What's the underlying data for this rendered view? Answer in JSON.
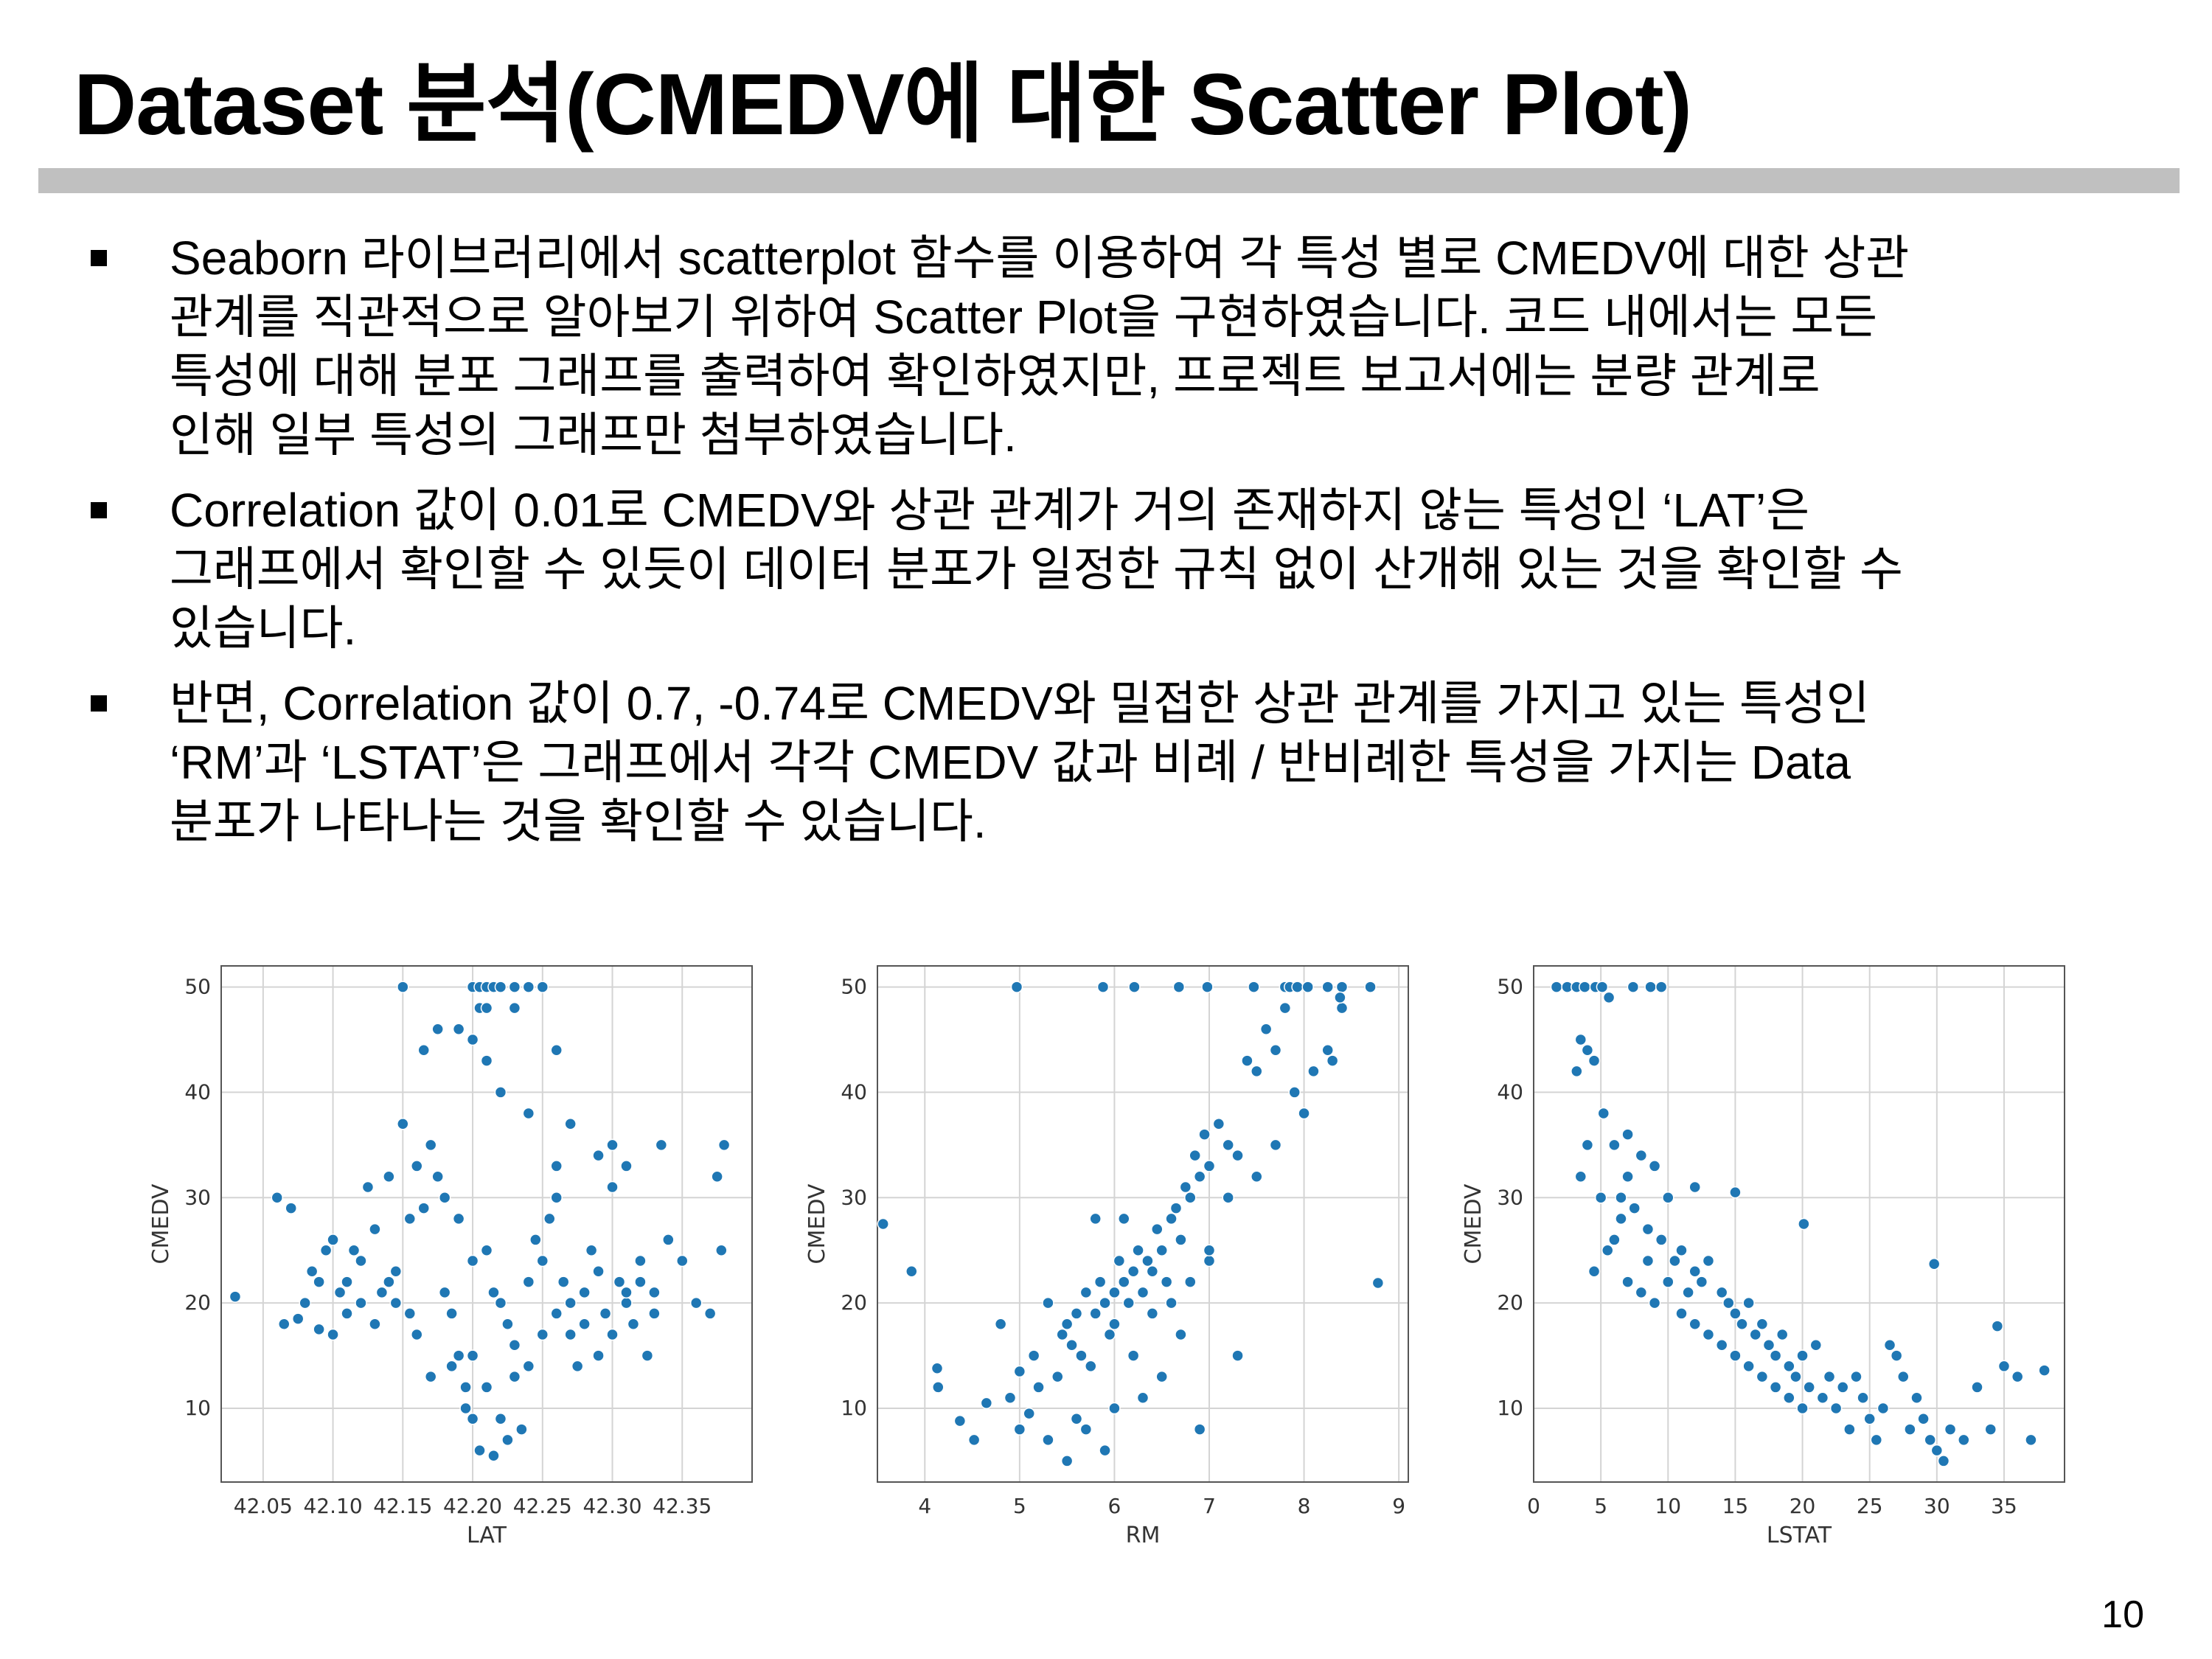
{
  "title": "Dataset 분석(CMEDV에 대한 Scatter Plot)",
  "page_number": "10",
  "bullets": [
    {
      "lines": [
        "Seaborn 라이브러리에서 scatterplot 함수를 이용하여 각 특성 별로 CMEDV에 대한 상관",
        "관계를 직관적으로 알아보기 위하여 Scatter Plot을 구현하였습니다. 코드 내에서는 모든",
        "특성에 대해 분포 그래프를 출력하여 확인하였지만, 프로젝트 보고서에는 분량 관계로",
        "인해 일부 특성의 그래프만 첨부하였습니다."
      ]
    },
    {
      "lines": [
        "Correlation 값이 0.01로 CMEDV와 상관 관계가 거의 존재하지 않는 특성인 ‘LAT’은",
        "그래프에서 확인할 수 있듯이 데이터 분포가 일정한 규칙 없이 산개해 있는 것을 확인할 수",
        "있습니다."
      ]
    },
    {
      "lines": [
        "반면, Correlation 값이 0.7, -0.74로 CMEDV와 밀접한 상관 관계를 가지고 있는 특성인",
        "‘RM’과 ‘LSTAT’은 그래프에서 각각 CMEDV 값과 비례 / 반비례한 특성을 가지는 Data",
        "분포가 나타나는 것을 확인할 수 있습니다."
      ]
    }
  ],
  "chart_data": [
    {
      "type": "scatter",
      "xlabel": "LAT",
      "ylabel": "CMEDV",
      "xlim": [
        42.02,
        42.4
      ],
      "ylim": [
        3,
        52
      ],
      "xticks": [
        "42.05",
        "42.10",
        "42.15",
        "42.20",
        "42.25",
        "42.30",
        "42.35"
      ],
      "yticks": [
        "10",
        "20",
        "30",
        "40",
        "50"
      ],
      "grid": true,
      "color": "#1f77b4",
      "points": [
        [
          42.03,
          20.6
        ],
        [
          42.06,
          30
        ],
        [
          42.065,
          18
        ],
        [
          42.07,
          29
        ],
        [
          42.075,
          18.5
        ],
        [
          42.08,
          20
        ],
        [
          42.085,
          23
        ],
        [
          42.09,
          17.5
        ],
        [
          42.095,
          25
        ],
        [
          42.1,
          17
        ],
        [
          42.105,
          21
        ],
        [
          42.11,
          22
        ],
        [
          42.115,
          25
        ],
        [
          42.12,
          24
        ],
        [
          42.125,
          31
        ],
        [
          42.13,
          27
        ],
        [
          42.135,
          21
        ],
        [
          42.14,
          32
        ],
        [
          42.145,
          23
        ],
        [
          42.15,
          37
        ],
        [
          42.155,
          28
        ],
        [
          42.16,
          33
        ],
        [
          42.165,
          29
        ],
        [
          42.17,
          35
        ],
        [
          42.175,
          32
        ],
        [
          42.18,
          21
        ],
        [
          42.185,
          19
        ],
        [
          42.19,
          15
        ],
        [
          42.195,
          12
        ],
        [
          42.2,
          9
        ],
        [
          42.205,
          6
        ],
        [
          42.21,
          25
        ],
        [
          42.215,
          21
        ],
        [
          42.22,
          20
        ],
        [
          42.225,
          18
        ],
        [
          42.23,
          13
        ],
        [
          42.235,
          8
        ],
        [
          42.24,
          22
        ],
        [
          42.245,
          26
        ],
        [
          42.25,
          24
        ],
        [
          42.255,
          28
        ],
        [
          42.26,
          30
        ],
        [
          42.265,
          22
        ],
        [
          42.27,
          17
        ],
        [
          42.275,
          14
        ],
        [
          42.28,
          21
        ],
        [
          42.285,
          25
        ],
        [
          42.29,
          23
        ],
        [
          42.295,
          19
        ],
        [
          42.3,
          31
        ],
        [
          42.305,
          22
        ],
        [
          42.31,
          20
        ],
        [
          42.315,
          18
        ],
        [
          42.32,
          24
        ],
        [
          42.325,
          15
        ],
        [
          42.33,
          21
        ],
        [
          42.34,
          26
        ],
        [
          42.35,
          24
        ],
        [
          42.36,
          20
        ],
        [
          42.37,
          19
        ],
        [
          42.38,
          35
        ],
        [
          42.375,
          32
        ],
        [
          42.378,
          25
        ],
        [
          42.15,
          50
        ],
        [
          42.2,
          50
        ],
        [
          42.205,
          50
        ],
        [
          42.21,
          50
        ],
        [
          42.215,
          50
        ],
        [
          42.22,
          50
        ],
        [
          42.23,
          50
        ],
        [
          42.24,
          50
        ],
        [
          42.25,
          50
        ],
        [
          42.205,
          48
        ],
        [
          42.21,
          48
        ],
        [
          42.23,
          48
        ],
        [
          42.19,
          46
        ],
        [
          42.2,
          45
        ],
        [
          42.21,
          43
        ],
        [
          42.165,
          44
        ],
        [
          42.175,
          46
        ],
        [
          42.26,
          44
        ],
        [
          42.22,
          40
        ],
        [
          42.24,
          38
        ],
        [
          42.27,
          37
        ],
        [
          42.26,
          33
        ],
        [
          42.29,
          34
        ],
        [
          42.3,
          35
        ],
        [
          42.31,
          33
        ],
        [
          42.335,
          35
        ],
        [
          42.18,
          30
        ],
        [
          42.19,
          28
        ],
        [
          42.2,
          24
        ],
        [
          42.2,
          15
        ],
        [
          42.21,
          12
        ],
        [
          42.22,
          9
        ],
        [
          42.225,
          7
        ],
        [
          42.215,
          5.5
        ],
        [
          42.195,
          10
        ],
        [
          42.185,
          14
        ],
        [
          42.17,
          13
        ],
        [
          42.16,
          17
        ],
        [
          42.155,
          19
        ],
        [
          42.145,
          20
        ],
        [
          42.14,
          22
        ],
        [
          42.13,
          18
        ],
        [
          42.12,
          20
        ],
        [
          42.11,
          19
        ],
        [
          42.1,
          26
        ],
        [
          42.09,
          22
        ],
        [
          42.23,
          16
        ],
        [
          42.24,
          14
        ],
        [
          42.25,
          17
        ],
        [
          42.26,
          19
        ],
        [
          42.27,
          20
        ],
        [
          42.28,
          18
        ],
        [
          42.29,
          15
        ],
        [
          42.3,
          17
        ],
        [
          42.31,
          21
        ],
        [
          42.32,
          22
        ],
        [
          42.33,
          19
        ]
      ]
    },
    {
      "type": "scatter",
      "xlabel": "RM",
      "ylabel": "CMEDV",
      "xlim": [
        3.5,
        9.1
      ],
      "ylim": [
        3,
        52
      ],
      "xticks": [
        "4",
        "5",
        "6",
        "7",
        "8",
        "9"
      ],
      "yticks": [
        "10",
        "20",
        "30",
        "40",
        "50"
      ],
      "grid": true,
      "color": "#1f77b4",
      "points": [
        [
          3.56,
          27.5
        ],
        [
          3.86,
          23
        ],
        [
          4.13,
          13.8
        ],
        [
          4.14,
          12
        ],
        [
          4.37,
          8.8
        ],
        [
          4.52,
          7
        ],
        [
          4.65,
          10.5
        ],
        [
          4.8,
          18
        ],
        [
          4.9,
          11
        ],
        [
          5.0,
          13.5
        ],
        [
          5.0,
          8
        ],
        [
          5.1,
          9.5
        ],
        [
          5.15,
          15
        ],
        [
          5.2,
          12
        ],
        [
          5.3,
          20
        ],
        [
          5.4,
          13
        ],
        [
          5.45,
          17
        ],
        [
          5.5,
          18
        ],
        [
          5.55,
          16
        ],
        [
          5.6,
          19
        ],
        [
          5.65,
          15
        ],
        [
          5.7,
          21
        ],
        [
          5.75,
          14
        ],
        [
          5.8,
          19
        ],
        [
          5.85,
          22
        ],
        [
          5.9,
          20
        ],
        [
          5.95,
          17
        ],
        [
          6.0,
          21
        ],
        [
          6.05,
          24
        ],
        [
          6.1,
          22
        ],
        [
          6.15,
          20
        ],
        [
          6.2,
          23
        ],
        [
          6.25,
          25
        ],
        [
          6.3,
          21
        ],
        [
          6.35,
          24
        ],
        [
          6.4,
          23
        ],
        [
          6.45,
          27
        ],
        [
          6.5,
          25
        ],
        [
          6.55,
          22
        ],
        [
          6.6,
          28
        ],
        [
          6.65,
          29
        ],
        [
          6.7,
          26
        ],
        [
          6.75,
          31
        ],
        [
          6.8,
          30
        ],
        [
          6.85,
          34
        ],
        [
          6.9,
          32
        ],
        [
          6.95,
          36
        ],
        [
          7.0,
          33
        ],
        [
          7.1,
          37
        ],
        [
          7.2,
          35
        ],
        [
          7.3,
          34
        ],
        [
          7.4,
          43
        ],
        [
          7.5,
          42
        ],
        [
          7.6,
          46
        ],
        [
          7.7,
          44
        ],
        [
          7.8,
          48
        ],
        [
          7.9,
          40
        ],
        [
          8.0,
          38
        ],
        [
          8.1,
          42
        ],
        [
          8.25,
          44
        ],
        [
          8.3,
          43
        ],
        [
          8.4,
          48
        ],
        [
          8.78,
          21.9
        ],
        [
          7.7,
          35
        ],
        [
          7.3,
          15
        ],
        [
          7.0,
          24
        ],
        [
          6.7,
          17
        ],
        [
          6.2,
          15
        ],
        [
          6.0,
          10
        ],
        [
          5.9,
          6
        ],
        [
          5.7,
          8
        ],
        [
          5.5,
          5
        ],
        [
          5.3,
          7
        ],
        [
          5.6,
          9
        ],
        [
          6.3,
          11
        ],
        [
          6.5,
          13
        ],
        [
          6.9,
          8
        ],
        [
          4.97,
          50
        ],
        [
          5.88,
          50
        ],
        [
          6.21,
          50
        ],
        [
          6.68,
          50
        ],
        [
          6.98,
          50
        ],
        [
          7.47,
          50
        ],
        [
          7.8,
          50
        ],
        [
          7.85,
          50
        ],
        [
          7.93,
          50
        ],
        [
          8.04,
          50
        ],
        [
          8.25,
          50
        ],
        [
          8.4,
          50
        ],
        [
          8.7,
          50
        ],
        [
          8.38,
          49
        ],
        [
          6.1,
          28
        ],
        [
          5.8,
          28
        ],
        [
          6.0,
          18
        ],
        [
          6.4,
          19
        ],
        [
          6.6,
          20
        ],
        [
          6.8,
          22
        ],
        [
          7.0,
          25
        ],
        [
          7.2,
          30
        ],
        [
          7.5,
          32
        ]
      ]
    },
    {
      "type": "scatter",
      "xlabel": "LSTAT",
      "ylabel": "CMEDV",
      "xlim": [
        0,
        39.5
      ],
      "ylim": [
        3,
        52
      ],
      "xticks": [
        "0",
        "5",
        "10",
        "15",
        "20",
        "25",
        "30",
        "35"
      ],
      "yticks": [
        "10",
        "20",
        "30",
        "40",
        "50"
      ],
      "grid": true,
      "color": "#1f77b4",
      "points": [
        [
          1.7,
          50
        ],
        [
          2.5,
          50
        ],
        [
          3.2,
          50
        ],
        [
          3.8,
          50
        ],
        [
          4.6,
          50
        ],
        [
          5.1,
          50
        ],
        [
          7.4,
          50
        ],
        [
          8.7,
          50
        ],
        [
          9.5,
          50
        ],
        [
          5.6,
          49
        ],
        [
          3.5,
          45
        ],
        [
          4.0,
          44
        ],
        [
          3.2,
          42
        ],
        [
          4.5,
          43
        ],
        [
          5.2,
          38
        ],
        [
          4.0,
          35
        ],
        [
          6.0,
          35
        ],
        [
          7.0,
          36
        ],
        [
          8.0,
          34
        ],
        [
          3.5,
          32
        ],
        [
          5.0,
          30
        ],
        [
          6.5,
          28
        ],
        [
          7.5,
          29
        ],
        [
          8.5,
          27
        ],
        [
          9.5,
          26
        ],
        [
          10.5,
          24
        ],
        [
          11.0,
          25
        ],
        [
          12.0,
          23
        ],
        [
          12.5,
          22
        ],
        [
          13.0,
          24
        ],
        [
          14.0,
          21
        ],
        [
          14.5,
          20
        ],
        [
          15.0,
          19
        ],
        [
          15.5,
          18
        ],
        [
          16.0,
          20
        ],
        [
          16.5,
          17
        ],
        [
          17.0,
          18
        ],
        [
          17.5,
          16
        ],
        [
          18.0,
          15
        ],
        [
          18.5,
          17
        ],
        [
          19.0,
          14
        ],
        [
          19.5,
          13
        ],
        [
          20.0,
          15
        ],
        [
          20.5,
          12
        ],
        [
          21.0,
          16
        ],
        [
          21.5,
          11
        ],
        [
          22.0,
          13
        ],
        [
          22.5,
          10
        ],
        [
          23.0,
          12
        ],
        [
          23.5,
          8
        ],
        [
          24.0,
          13
        ],
        [
          24.5,
          11
        ],
        [
          25.0,
          9
        ],
        [
          25.5,
          7
        ],
        [
          26.0,
          10
        ],
        [
          26.5,
          16
        ],
        [
          27.0,
          15
        ],
        [
          27.5,
          13
        ],
        [
          28.0,
          8
        ],
        [
          28.5,
          11
        ],
        [
          29.0,
          9
        ],
        [
          29.5,
          7
        ],
        [
          30.0,
          6
        ],
        [
          30.5,
          5
        ],
        [
          31.0,
          8
        ],
        [
          32.0,
          7
        ],
        [
          33.0,
          12
        ],
        [
          34.0,
          8
        ],
        [
          34.5,
          17.8
        ],
        [
          35.0,
          14
        ],
        [
          36.0,
          13
        ],
        [
          37.0,
          7
        ],
        [
          38.0,
          13.6
        ],
        [
          29.8,
          23.7
        ],
        [
          20.1,
          27.5
        ],
        [
          15.0,
          30.5
        ],
        [
          12.0,
          31
        ],
        [
          9.0,
          33
        ],
        [
          7.0,
          32
        ],
        [
          6.0,
          26
        ],
        [
          4.5,
          23
        ],
        [
          5.5,
          25
        ],
        [
          7.0,
          22
        ],
        [
          8.0,
          21
        ],
        [
          9.0,
          20
        ],
        [
          10.0,
          22
        ],
        [
          11.0,
          19
        ],
        [
          12.0,
          18
        ],
        [
          13.0,
          17
        ],
        [
          14.0,
          16
        ],
        [
          15.0,
          15
        ],
        [
          16.0,
          14
        ],
        [
          17.0,
          13
        ],
        [
          18.0,
          12
        ],
        [
          19.0,
          11
        ],
        [
          20.0,
          10
        ],
        [
          10.0,
          30
        ],
        [
          8.5,
          24
        ],
        [
          11.5,
          21
        ],
        [
          6.5,
          30
        ]
      ]
    }
  ]
}
